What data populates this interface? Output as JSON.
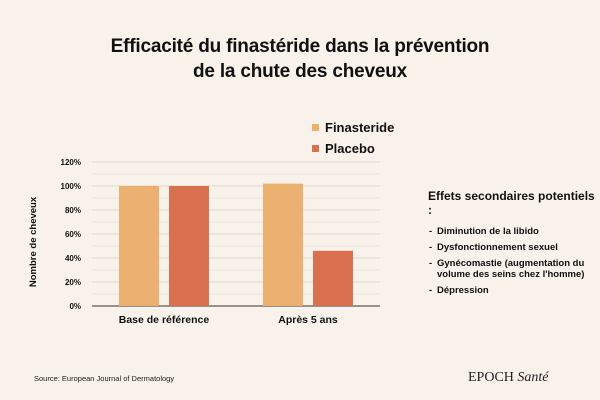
{
  "title_line1": "Efficacité du finastéride dans la prévention",
  "title_line2": "de la chute des cheveux",
  "side_effects": {
    "title": "Effets secondaires potentiels :",
    "items": [
      "Diminution de la libido",
      "Dysfonctionnement sexuel",
      "Gynécomastie (augmentation du volume des seins chez l'homme)",
      "Dépression"
    ]
  },
  "source": "Source: European Journal of Dermatology",
  "brand": {
    "name": "EPOCH",
    "suffix": "Santé"
  },
  "chart_data": {
    "type": "bar",
    "title": "Efficacité du finastéride dans la prévention de la chute des cheveux",
    "ylabel": "Nombre de cheveux",
    "xlabel": "",
    "categories": [
      "Base de référence",
      "Après 5 ans"
    ],
    "series": [
      {
        "name": "Finasteride",
        "color": "#ecb070",
        "values": [
          100,
          102
        ]
      },
      {
        "name": "Placebo",
        "color": "#d9704f",
        "values": [
          100,
          46
        ]
      }
    ],
    "ylim": [
      0,
      120
    ],
    "yticks": [
      0,
      10,
      20,
      30,
      40,
      50,
      60,
      70,
      80,
      90,
      100,
      110,
      120
    ],
    "ytick_labels": [
      "0%",
      "10%",
      "20%",
      "30%",
      "40%",
      "50%",
      "60%",
      "70%",
      "80%",
      "90%",
      "100%",
      "110%",
      "120%"
    ],
    "grid": true,
    "legend_position": "top-right of plot"
  }
}
